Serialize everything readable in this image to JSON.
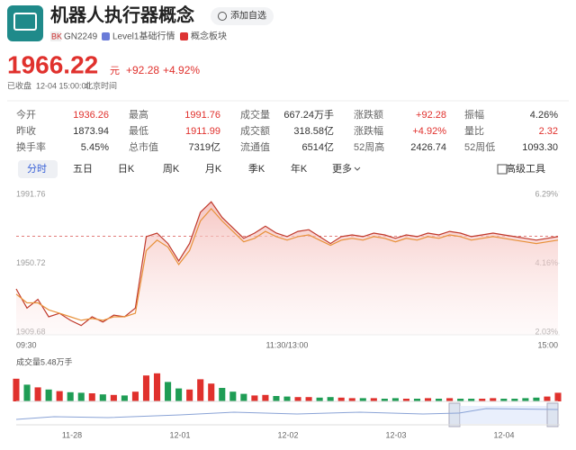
{
  "header": {
    "title": "机器人执行器概念",
    "add_button": "添加自选",
    "tags": [
      "BK",
      "GN2249",
      "Level1基础行情",
      "概念板块"
    ]
  },
  "quote": {
    "price": "1966.22",
    "unit": "元",
    "change": "+92.28",
    "change_pct": "+4.92%",
    "status": "已收盘",
    "time": "12-04 15:00:00",
    "timezone": "北京时间"
  },
  "stats": [
    [
      {
        "label": "今开",
        "value": "1936.26",
        "color": "#e0312d"
      },
      {
        "label": "最高",
        "value": "1991.76",
        "color": "#e0312d"
      },
      {
        "label": "成交量",
        "value": "667.24万手",
        "color": "#333333"
      },
      {
        "label": "涨跌额",
        "value": "+92.28",
        "color": "#e0312d"
      },
      {
        "label": "振幅",
        "value": "4.26%",
        "color": "#333333"
      }
    ],
    [
      {
        "label": "昨收",
        "value": "1873.94",
        "color": "#333333"
      },
      {
        "label": "最低",
        "value": "1911.99",
        "color": "#e0312d"
      },
      {
        "label": "成交额",
        "value": "318.58亿",
        "color": "#333333"
      },
      {
        "label": "涨跌幅",
        "value": "+4.92%",
        "color": "#e0312d"
      },
      {
        "label": "量比",
        "value": "2.32",
        "color": "#e0312d"
      }
    ],
    [
      {
        "label": "换手率",
        "value": "5.45%",
        "color": "#333333"
      },
      {
        "label": "总市值",
        "value": "7319亿",
        "color": "#333333"
      },
      {
        "label": "流通值",
        "value": "6514亿",
        "color": "#333333"
      },
      {
        "label": "52周高",
        "value": "2426.74",
        "color": "#333333"
      },
      {
        "label": "52周低",
        "value": "1093.30",
        "color": "#333333"
      }
    ]
  ],
  "tabs": [
    "分时",
    "五日",
    "日K",
    "周K",
    "月K",
    "季K",
    "年K",
    "更多"
  ],
  "tools": "高级工具",
  "chart_data": {
    "type": "line",
    "x_labels": [
      "09:30",
      "11:30/13:00",
      "15:00"
    ],
    "ylim": [
      1909.68,
      1991.76
    ],
    "yticks": [
      1991.76,
      1950.72,
      1909.68
    ],
    "y2lim": [
      2.03,
      6.29
    ],
    "y2ticks": [
      {
        "value": 6.29,
        "label": "6.29%"
      },
      {
        "value": 4.16,
        "label": "4.16%"
      },
      {
        "value": 2.03,
        "label": "2.03%"
      }
    ],
    "series": [
      {
        "color": "#c0392b",
        "values": [
          1936,
          1925,
          1930,
          1920,
          1922,
          1918,
          1915,
          1920,
          1917,
          1921,
          1920,
          1925,
          1966,
          1968,
          1962,
          1952,
          1962,
          1980,
          1986,
          1977,
          1971,
          1965,
          1968,
          1972,
          1968,
          1966,
          1969,
          1970,
          1966,
          1962,
          1966,
          1967,
          1966,
          1968,
          1967,
          1965,
          1967,
          1966,
          1968,
          1967,
          1969,
          1968,
          1966,
          1967,
          1968,
          1967,
          1966,
          1965,
          1964,
          1965,
          1966
        ]
      },
      {
        "color": "#e8913a",
        "values": [
          1933,
          1928,
          1928,
          1924,
          1922,
          1920,
          1918,
          1919,
          1918,
          1920,
          1920,
          1922,
          1958,
          1964,
          1960,
          1950,
          1958,
          1975,
          1982,
          1975,
          1969,
          1963,
          1965,
          1969,
          1966,
          1964,
          1966,
          1967,
          1964,
          1961,
          1964,
          1965,
          1964,
          1966,
          1965,
          1963,
          1965,
          1964,
          1966,
          1965,
          1967,
          1966,
          1964,
          1965,
          1966,
          1965,
          1964,
          1963,
          1962,
          1963,
          1964
        ]
      }
    ],
    "volume": {
      "label": "成交量5.48万手",
      "ylim": [
        0,
        6
      ],
      "up_color": "#e0312d",
      "down_color": "#1f9d55",
      "values": [
        4.2,
        3.1,
        2.6,
        2.2,
        1.9,
        1.7,
        1.6,
        1.5,
        1.3,
        1.2,
        1.1,
        1.8,
        4.8,
        5.2,
        3.6,
        2.4,
        2.2,
        4.1,
        3.3,
        2.5,
        1.8,
        1.4,
        1.1,
        1.2,
        1.0,
        0.9,
        0.8,
        0.8,
        0.7,
        0.8,
        0.7,
        0.6,
        0.6,
        0.6,
        0.5,
        0.6,
        0.5,
        0.5,
        0.6,
        0.5,
        0.6,
        0.5,
        0.5,
        0.5,
        0.6,
        0.5,
        0.5,
        0.6,
        0.7,
        0.9,
        1.6
      ]
    }
  },
  "navigator": {
    "dates": [
      "11-28",
      "12-01",
      "12-02",
      "12-03",
      "12-04"
    ]
  }
}
